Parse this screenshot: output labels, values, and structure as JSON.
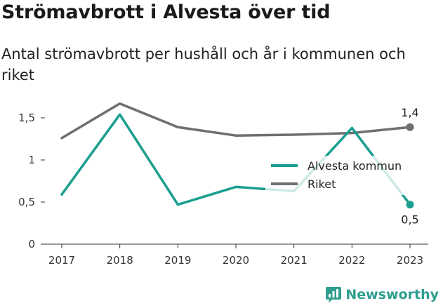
{
  "header": {
    "title": "Strömavbrott i Alvesta över tid",
    "subtitle": "Antal strömavbrott per hushåll och år i kommunen och riket"
  },
  "brand": {
    "name": "Newsworthy",
    "color": "#2e9e8f",
    "icon": "newsworthy-logo-icon"
  },
  "chart_data": {
    "type": "line",
    "title": "Strömavbrott i Alvesta över tid",
    "subtitle": "Antal strömavbrott per hushåll och år i kommunen och riket",
    "x": [
      "2017",
      "2018",
      "2019",
      "2020",
      "2021",
      "2022",
      "2023"
    ],
    "ylim": [
      0,
      1.65
    ],
    "yticks": [
      0,
      0.5,
      1,
      1.5
    ],
    "ytick_labels": [
      "0",
      "0,5",
      "1",
      "1,5"
    ],
    "grid": false,
    "legend": "center-right",
    "series": [
      {
        "name": "Alvesta kommun",
        "color": "#1a9e8f",
        "values": [
          0.59,
          1.54,
          0.47,
          0.68,
          0.63,
          1.38,
          0.47
        ],
        "end_label": "0,5"
      },
      {
        "name": "Riket",
        "color": "#6e6e73",
        "values": [
          1.26,
          1.67,
          1.39,
          1.29,
          1.3,
          1.32,
          1.39
        ],
        "end_label": "1,4"
      }
    ]
  }
}
